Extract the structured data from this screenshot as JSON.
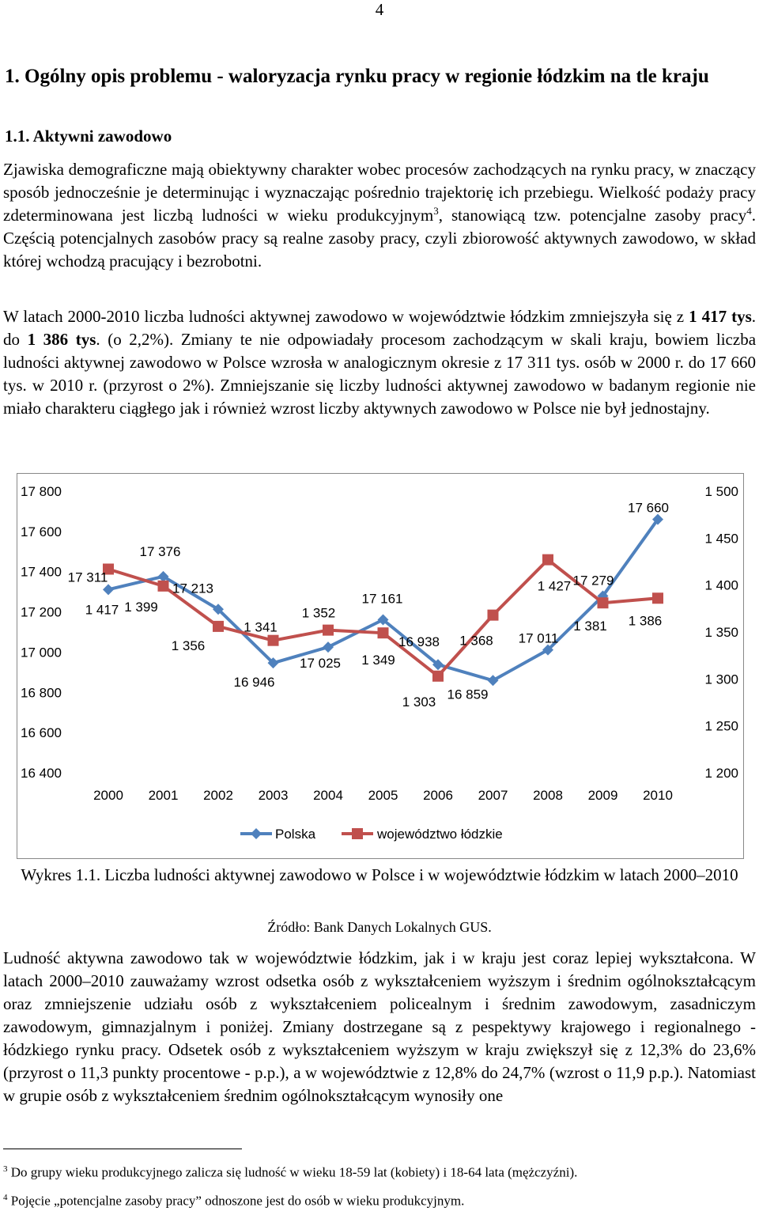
{
  "page_number": "4",
  "heading1": "1. Ogólny opis problemu - waloryzacja rynku pracy w regionie łódzkim na tle kraju",
  "heading2": "1.1. Aktywni zawodowo",
  "p1": {
    "a": "Zjawiska demograficzne mają obiektywny charakter wobec procesów zachodzących na rynku pracy, w znaczący sposób jednocześnie je determinując i wyznaczając pośrednio trajektorię ich przebiegu. Wielkość podaży pracy zdeterminowana jest liczbą ludności w wieku produkcyjnym",
    "fn1": "3",
    "b": ", stanowiącą tzw. potencjalne zasoby pracy",
    "fn2": "4",
    "c": ". Częścią potencjalnych zasobów pracy są realne zasoby pracy, czyli zbiorowość aktywnych zawodowo, w skład której wchodzą pracujący i bezrobotni."
  },
  "p2": {
    "a": "W latach 2000-2010 liczba ludności aktywnej zawodowo w województwie łódzkim zmniejszyła się z ",
    "b1": "1 417 tys",
    "m1": ". do ",
    "b2": "1 386 tys",
    "c": ". (o 2,2%). Zmiany te nie odpowiadały procesom zachodzącym w skali kraju, bowiem liczba ludności aktywnej zawodowo w Polsce wzrosła w analogicznym okresie z 17 311 tys. osób w 2000 r. do 17 660 tys. w 2010 r. (przyrost o 2%). Zmniejszanie się liczby ludności aktywnej zawodowo w badanym regionie nie miało charakteru ciągłego jak i również wzrost liczby aktywnych zawodowo w Polsce nie był jednostajny."
  },
  "caption": "Wykres 1.1. Liczba ludności aktywnej zawodowo w Polsce i w województwie łódzkim w latach 2000–2010",
  "source": "Źródło: Bank Danych Lokalnych GUS.",
  "p3": "Ludność aktywna zawodowo tak w województwie łódzkim, jak i w kraju jest coraz lepiej wykształcona. W latach 2000–2010 zauważamy wzrost odsetka osób z wykształceniem wyższym i średnim ogólnokształcącym oraz zmniejszenie udziału osób z wykształceniem policealnym i średnim zawodowym, zasadniczym zawodowym, gimnazjalnym i poniżej. Zmiany dostrzegane są z pespektywy krajowego i regionalnego - łódzkiego rynku pracy. Odsetek osób z wykształceniem wyższym w kraju zwiększył się z 12,3% do 23,6% (przyrost o 11,3 punkty procentowe - p.p.), a w województwie z 12,8% do 24,7% (wzrost o 11,9 p.p.). Natomiast w grupie osób z wykształceniem średnim ogólnokształcącym wynosiły one",
  "footnote1": {
    "num": "3",
    "text": " Do grupy wieku produkcyjnego zalicza się ludność w wieku 18-59 lat (kobiety) i 18-64 lata (mężczyźni)."
  },
  "footnote2": {
    "num": "4",
    "text": " Pojęcie „potencjalne zasoby pracy” odnoszone jest do osób w wieku produkcyjnym."
  },
  "chart_data": {
    "type": "line",
    "x": [
      "2000",
      "2001",
      "2002",
      "2003",
      "2004",
      "2005",
      "2006",
      "2007",
      "2008",
      "2009",
      "2010"
    ],
    "series": [
      {
        "name": "Polska",
        "axis": "left",
        "color": "#4f81bd",
        "marker": "diamond",
        "values": [
          17311,
          17376,
          17213,
          16946,
          17025,
          17161,
          16938,
          16859,
          17011,
          17279,
          17660
        ],
        "labels": [
          "17 311",
          "17 376",
          "17 213",
          "16 946",
          "17 025",
          "17 161",
          "16 938",
          "16 859",
          "17 011",
          "17 279",
          "17 660"
        ]
      },
      {
        "name": "województwo łódzkie",
        "axis": "right",
        "color": "#c0504d",
        "marker": "square",
        "values": [
          1417,
          1399,
          1356,
          1341,
          1352,
          1349,
          1303,
          1368,
          1427,
          1381,
          1386
        ],
        "labels": [
          "1 417",
          "1 399",
          "1 356",
          "1 341",
          "1 352",
          "1 349",
          "1 303",
          "1 368",
          "1 427",
          "1 381",
          "1 386"
        ]
      }
    ],
    "y_left": {
      "min": 16400,
      "max": 17800,
      "step": 200,
      "tick_labels": [
        "16 400",
        "16 600",
        "16 800",
        "17 000",
        "17 200",
        "17 400",
        "17 600",
        "17 800"
      ]
    },
    "y_right": {
      "min": 1200,
      "max": 1500,
      "step": 50,
      "tick_labels": [
        "1 200",
        "1 250",
        "1 300",
        "1 350",
        "1 400",
        "1 450",
        "1 500"
      ]
    },
    "grid": false,
    "legend_position": "bottom"
  }
}
